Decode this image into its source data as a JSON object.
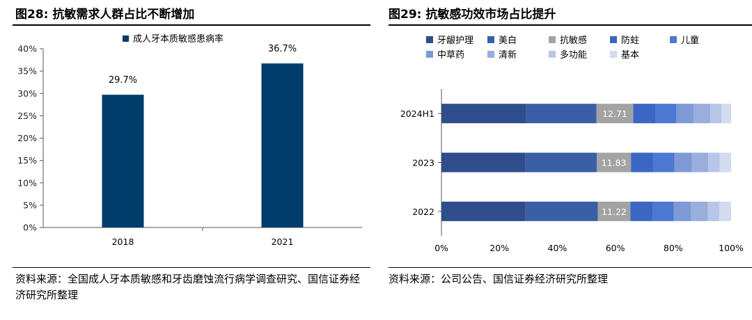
{
  "left": {
    "title": "图28: 抗敏需求人群占比不断增加",
    "source": "资料来源：全国成人牙本质敏感和牙齿磨蚀流行病学调查研究、国信证券经济研究所整理"
  },
  "right": {
    "title": "图29: 抗敏感功效市场占比提升",
    "source": "资料来源：公司公告、国信证券经济研究所整理"
  },
  "chart_data": [
    {
      "type": "bar",
      "title": "图28: 抗敏需求人群占比不断增加",
      "categories": [
        "2018",
        "2021"
      ],
      "series": [
        {
          "name": "成人牙本质敏感患病率",
          "values": [
            29.7,
            36.7
          ],
          "color": "#003d6b"
        }
      ],
      "data_labels": [
        "29.7%",
        "36.7%"
      ],
      "ylim": [
        0,
        40
      ],
      "yticks": [
        "0%",
        "5%",
        "10%",
        "15%",
        "20%",
        "25%",
        "30%",
        "35%",
        "40%"
      ],
      "legend_position": "top",
      "grid": false
    },
    {
      "type": "bar",
      "orientation": "horizontal",
      "stacked": true,
      "title": "图29: 抗敏感功效市场占比提升",
      "categories": [
        "2024H1",
        "2023",
        "2022"
      ],
      "xticks": [
        "0%",
        "20%",
        "40%",
        "60%",
        "80%",
        "100%"
      ],
      "xlim": [
        0,
        100
      ],
      "legend_position": "top",
      "grid": false,
      "series": [
        {
          "name": "牙龈护理",
          "color": "#2e4d8a",
          "values": [
            29.3,
            29.0,
            29.0
          ],
          "label": [
            "",
            "",
            ""
          ]
        },
        {
          "name": "美白",
          "color": "#3a5fa6",
          "values": [
            24.2,
            24.6,
            25.0
          ],
          "label": [
            "",
            "",
            ""
          ]
        },
        {
          "name": "抗敏感",
          "color": "#a3a3a3",
          "values": [
            12.71,
            11.83,
            11.22
          ],
          "label": [
            "12.71",
            "11.83",
            "11.22"
          ]
        },
        {
          "name": "防蛀",
          "color": "#3b66c4",
          "values": [
            7.8,
            7.8,
            7.8
          ],
          "label": [
            "",
            "",
            ""
          ]
        },
        {
          "name": "儿童",
          "color": "#4a78d2",
          "values": [
            7.0,
            7.2,
            7.2
          ],
          "label": [
            "",
            "",
            ""
          ]
        },
        {
          "name": "中草药",
          "color": "#7e9ad4",
          "values": [
            6.0,
            6.0,
            6.0
          ],
          "label": [
            "",
            "",
            ""
          ]
        },
        {
          "name": "清新",
          "color": "#9aaedd",
          "values": [
            5.8,
            5.7,
            5.8
          ],
          "label": [
            "",
            "",
            ""
          ]
        },
        {
          "name": "多功能",
          "color": "#b8c6e8",
          "values": [
            3.9,
            3.9,
            3.9
          ],
          "label": [
            "",
            "",
            ""
          ]
        },
        {
          "name": "基本",
          "color": "#d3dbef",
          "values": [
            3.29,
            3.97,
            4.08
          ],
          "label": [
            "",
            "",
            ""
          ]
        }
      ]
    }
  ]
}
